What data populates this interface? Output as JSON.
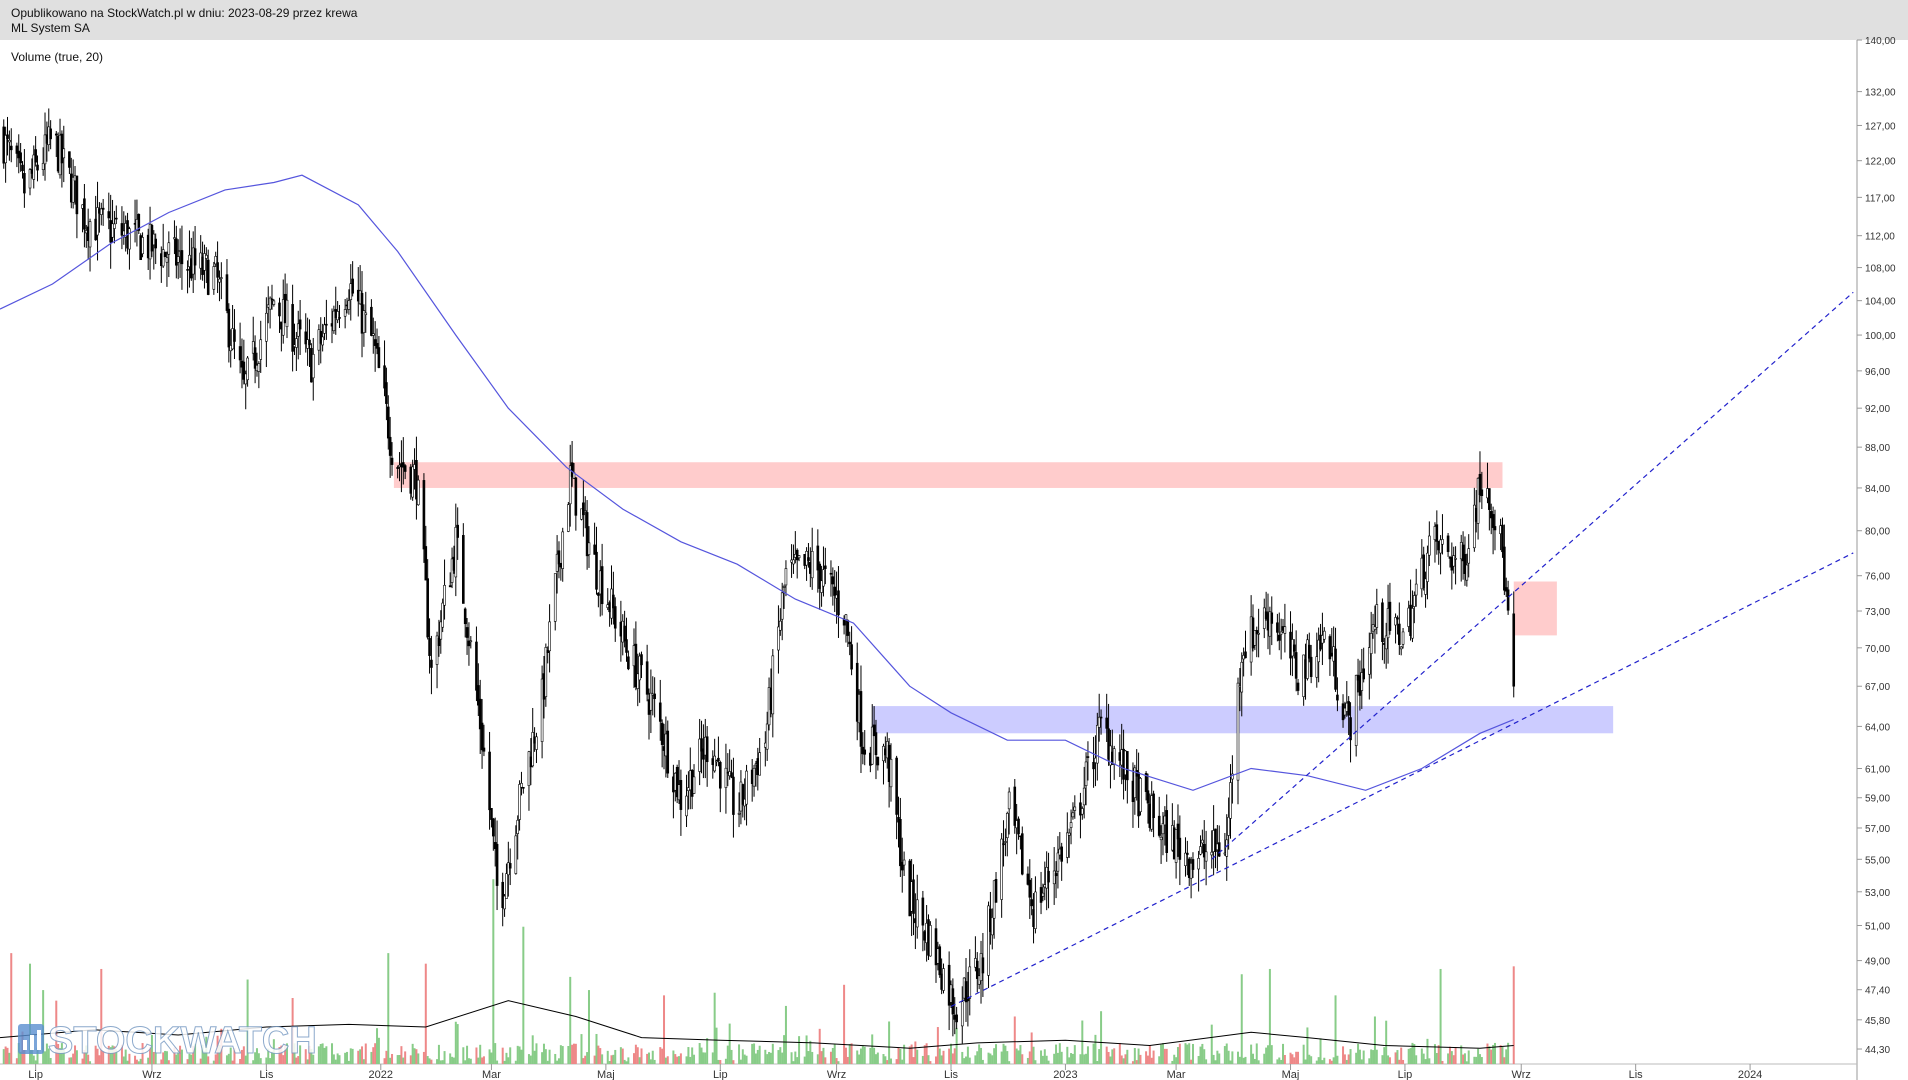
{
  "header": {
    "published": "Opublikowano na StockWatch.pl w dniu: 2023-08-29 przez krewa",
    "instrument": "ML System SA"
  },
  "indicator_label": "Volume (true, 20)",
  "watermark": {
    "text": "STOCKWATCH",
    "icon": "stockwatch-bars-icon"
  },
  "colors": {
    "candle": "#000000",
    "ma_line": "#5555dd",
    "resistance_zone": "#ffcccc",
    "support_zone": "#ccccff",
    "trendline": "#2222cc",
    "volume_up": "#88cc88",
    "volume_down": "#ee8888",
    "volume_ma": "#000000"
  },
  "chart_data": {
    "type": "candlestick",
    "y_scale": "log",
    "ylim": [
      43.5,
      140
    ],
    "y_ticks": [
      "140,00",
      "132,00",
      "127,00",
      "122,00",
      "117,00",
      "112,00",
      "108,00",
      "104,00",
      "100,00",
      "96,00",
      "92,00",
      "88,00",
      "84,00",
      "80,00",
      "76,00",
      "73,00",
      "70,00",
      "67,00",
      "64,00",
      "61,00",
      "59,00",
      "57,00",
      "55,00",
      "53,00",
      "51,00",
      "49,00",
      "47,40",
      "45,80",
      "44,30"
    ],
    "x_ticks": [
      "Lip",
      "Wrz",
      "Lis",
      "2022",
      "Mar",
      "Maj",
      "Lip",
      "Wrz",
      "Lis",
      "2023",
      "Mar",
      "Maj",
      "Lip",
      "Wrz",
      "Lis",
      "2024"
    ],
    "xlim": [
      "2021-06-12",
      "2024-02-27"
    ],
    "price_path": [
      [
        "2021-06-12",
        126
      ],
      [
        "2021-06-25",
        118
      ],
      [
        "2021-07-10",
        125
      ],
      [
        "2021-07-28",
        114
      ],
      [
        "2021-08-20",
        112
      ],
      [
        "2021-09-15",
        109
      ],
      [
        "2021-10-05",
        107
      ],
      [
        "2021-10-20",
        94
      ],
      [
        "2021-11-05",
        104
      ],
      [
        "2021-11-25",
        97
      ],
      [
        "2021-12-15",
        106
      ],
      [
        "2021-12-28",
        99
      ],
      [
        "2022-01-08",
        87
      ],
      [
        "2022-01-20",
        85
      ],
      [
        "2022-01-28",
        68
      ],
      [
        "2022-02-10",
        79
      ],
      [
        "2022-02-25",
        62
      ],
      [
        "2022-03-05",
        52
      ],
      [
        "2022-03-18",
        60
      ],
      [
        "2022-03-28",
        66
      ],
      [
        "2022-04-12",
        85
      ],
      [
        "2022-04-25",
        77
      ],
      [
        "2022-05-12",
        70
      ],
      [
        "2022-05-28",
        65
      ],
      [
        "2022-06-10",
        59
      ],
      [
        "2022-06-25",
        63
      ],
      [
        "2022-07-10",
        58
      ],
      [
        "2022-07-25",
        63
      ],
      [
        "2022-08-05",
        76
      ],
      [
        "2022-08-20",
        77
      ],
      [
        "2022-09-05",
        73
      ],
      [
        "2022-09-15",
        63
      ],
      [
        "2022-09-28",
        62
      ],
      [
        "2022-10-08",
        53
      ],
      [
        "2022-10-22",
        50
      ],
      [
        "2022-11-03",
        46.5
      ],
      [
        "2022-11-18",
        49
      ],
      [
        "2022-12-02",
        58
      ],
      [
        "2022-12-15",
        52
      ],
      [
        "2023-01-05",
        57
      ],
      [
        "2023-01-20",
        64
      ],
      [
        "2023-02-05",
        60
      ],
      [
        "2023-02-20",
        57
      ],
      [
        "2023-03-10",
        55
      ],
      [
        "2023-03-28",
        56
      ],
      [
        "2023-04-05",
        70
      ],
      [
        "2023-04-20",
        73
      ],
      [
        "2023-05-05",
        68
      ],
      [
        "2023-05-20",
        71
      ],
      [
        "2023-06-01",
        64
      ],
      [
        "2023-06-15",
        72
      ],
      [
        "2023-07-01",
        71
      ],
      [
        "2023-07-15",
        79
      ],
      [
        "2023-08-01",
        77
      ],
      [
        "2023-08-12",
        86
      ],
      [
        "2023-08-22",
        78
      ],
      [
        "2023-08-28",
        66
      ]
    ],
    "moving_average": [
      [
        "2021-06-12",
        103
      ],
      [
        "2021-07-10",
        106
      ],
      [
        "2021-08-10",
        111
      ],
      [
        "2021-09-10",
        115
      ],
      [
        "2021-10-10",
        118
      ],
      [
        "2021-11-05",
        119
      ],
      [
        "2021-11-20",
        120
      ],
      [
        "2021-12-20",
        116
      ],
      [
        "2022-01-10",
        110
      ],
      [
        "2022-02-10",
        100
      ],
      [
        "2022-03-10",
        92
      ],
      [
        "2022-04-10",
        86
      ],
      [
        "2022-05-10",
        82
      ],
      [
        "2022-06-10",
        79
      ],
      [
        "2022-07-10",
        77
      ],
      [
        "2022-08-10",
        74
      ],
      [
        "2022-09-10",
        72
      ],
      [
        "2022-10-10",
        67
      ],
      [
        "2022-11-01",
        65
      ],
      [
        "2022-12-01",
        63
      ],
      [
        "2023-01-01",
        63
      ],
      [
        "2023-02-01",
        61
      ],
      [
        "2023-03-10",
        59.5
      ],
      [
        "2023-04-10",
        61
      ],
      [
        "2023-05-10",
        60.5
      ],
      [
        "2023-06-10",
        59.5
      ],
      [
        "2023-07-10",
        61
      ],
      [
        "2023-08-10",
        63.5
      ],
      [
        "2023-08-28",
        64.5
      ]
    ],
    "zones": [
      {
        "kind": "resistance",
        "from": "2022-01-08",
        "to": "2023-08-22",
        "low": 84,
        "high": 86.5
      },
      {
        "kind": "target",
        "from": "2023-08-28",
        "to": "2023-09-20",
        "low": 71,
        "high": 75.5
      },
      {
        "kind": "support",
        "from": "2022-09-20",
        "to": "2023-10-20",
        "low": 63.5,
        "high": 65.5
      }
    ],
    "trendlines": [
      {
        "from": [
          "2022-11-01",
          46.5
        ],
        "to": [
          "2024-02-25",
          78
        ]
      },
      {
        "from": [
          "2023-03-20",
          55
        ],
        "to": [
          "2024-02-25",
          105
        ]
      }
    ],
    "volume": {
      "max": 100,
      "spikes": [
        [
          "2021-06-18",
          42
        ],
        [
          "2021-06-28",
          38
        ],
        [
          "2021-07-05",
          28
        ],
        [
          "2021-07-12",
          24
        ],
        [
          "2021-08-05",
          36
        ],
        [
          "2021-09-25",
          30
        ],
        [
          "2021-10-22",
          32
        ],
        [
          "2021-10-30",
          39
        ],
        [
          "2021-11-15",
          25
        ],
        [
          "2021-12-18",
          28
        ],
        [
          "2022-01-05",
          42
        ],
        [
          "2022-01-25",
          38
        ],
        [
          "2022-02-20",
          35
        ],
        [
          "2022-03-02",
          70
        ],
        [
          "2022-03-18",
          52
        ],
        [
          "2022-04-12",
          33
        ],
        [
          "2022-04-22",
          28
        ],
        [
          "2022-06-01",
          26
        ],
        [
          "2022-06-28",
          27
        ],
        [
          "2022-08-05",
          22
        ],
        [
          "2022-09-05",
          30
        ],
        [
          "2022-10-25",
          14
        ],
        [
          "2022-12-05",
          18
        ],
        [
          "2023-01-20",
          20
        ],
        [
          "2023-03-05",
          22
        ],
        [
          "2023-04-05",
          34
        ],
        [
          "2023-04-20",
          36
        ],
        [
          "2023-05-25",
          26
        ],
        [
          "2023-06-15",
          18
        ],
        [
          "2023-07-20",
          36
        ],
        [
          "2023-08-28",
          37
        ]
      ],
      "ma_path": [
        [
          "2021-06-12",
          10
        ],
        [
          "2021-08-01",
          13
        ],
        [
          "2021-09-15",
          11
        ],
        [
          "2021-11-01",
          14
        ],
        [
          "2021-12-15",
          15
        ],
        [
          "2022-01-25",
          14
        ],
        [
          "2022-03-10",
          24
        ],
        [
          "2022-04-15",
          18
        ],
        [
          "2022-05-20",
          10
        ],
        [
          "2022-07-01",
          9
        ],
        [
          "2022-08-20",
          8
        ],
        [
          "2022-10-10",
          6
        ],
        [
          "2022-11-15",
          8
        ],
        [
          "2023-01-01",
          9
        ],
        [
          "2023-02-15",
          7
        ],
        [
          "2023-04-10",
          12
        ],
        [
          "2023-05-10",
          10
        ],
        [
          "2023-06-20",
          7
        ],
        [
          "2023-08-10",
          6
        ],
        [
          "2023-08-28",
          7
        ]
      ]
    }
  }
}
